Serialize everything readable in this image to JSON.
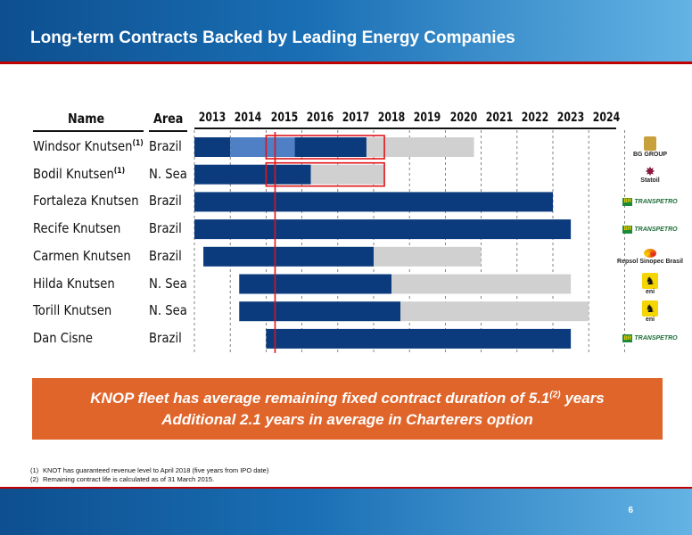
{
  "header": {
    "title": "Long-term Contracts Backed by Leading Energy Companies"
  },
  "table_headers": {
    "name": "Name",
    "area": "Area"
  },
  "callout": {
    "line1_a": "KNOP fleet has average remaining fixed contract duration of 5.1",
    "line1_sup": "(2)",
    "line1_b": " years",
    "line2": "Additional 2.1 years in average in Charterers option"
  },
  "footnotes": [
    {
      "num": "(1)",
      "text": "KNOT has guaranteed revenue level to April 2018 (five years from IPO date)"
    },
    {
      "num": "(2)",
      "text": "Remaining contract life is calculated as of 31 March 2015."
    }
  ],
  "page_number": "6",
  "colors": {
    "fixed": "#0b3b7c",
    "fixed_light": "#4f7fc4",
    "option": "#d0d0d0",
    "guarantee_box": "#e0141a",
    "current_date_line": "#e0141a",
    "callout": "#e0652b"
  },
  "chart_data": {
    "type": "gantt",
    "x_axis": {
      "years": [
        "2013",
        "2014",
        "2015",
        "2016",
        "2017",
        "2018",
        "2019",
        "2020",
        "2021",
        "2022",
        "2023",
        "2024"
      ],
      "range": [
        2013,
        2025
      ]
    },
    "current_date": 2015.25,
    "grid": "vertical dashed lines at year boundaries",
    "rows": [
      {
        "name": "Windsor Knutsen",
        "name_sup": "(1)",
        "area": "Brazil",
        "charterer": "BG GROUP",
        "charterer_icon": "bg-group-logo",
        "segments": [
          {
            "kind": "fixed",
            "start": 2013.0,
            "end": 2014.0
          },
          {
            "kind": "fixed_light",
            "start": 2014.0,
            "end": 2015.8
          },
          {
            "kind": "fixed",
            "start": 2015.8,
            "end": 2017.8
          },
          {
            "kind": "option",
            "start": 2017.8,
            "end": 2020.8
          }
        ],
        "guarantee": {
          "start": 2015.0,
          "end": 2018.3
        }
      },
      {
        "name": "Bodil Knutsen",
        "name_sup": "(1)",
        "area": "N. Sea",
        "charterer": "Statoil",
        "charterer_icon": "statoil-logo",
        "segments": [
          {
            "kind": "fixed",
            "start": 2013.0,
            "end": 2016.25
          },
          {
            "kind": "option",
            "start": 2016.25,
            "end": 2018.3
          }
        ],
        "guarantee": {
          "start": 2015.0,
          "end": 2018.3
        }
      },
      {
        "name": "Fortaleza Knutsen",
        "name_sup": "",
        "area": "Brazil",
        "charterer": "TRANSPETRO",
        "charterer_icon": "transpetro-logo",
        "segments": [
          {
            "kind": "fixed",
            "start": 2013.0,
            "end": 2023.0
          }
        ]
      },
      {
        "name": "Recife Knutsen",
        "name_sup": "",
        "area": "Brazil",
        "charterer": "TRANSPETRO",
        "charterer_icon": "transpetro-logo",
        "segments": [
          {
            "kind": "fixed",
            "start": 2013.0,
            "end": 2023.5
          }
        ]
      },
      {
        "name": "Carmen Knutsen",
        "name_sup": "",
        "area": "Brazil",
        "charterer": "Repsol Sinopec Brasil",
        "charterer_icon": "repsol-sinopec-logo",
        "segments": [
          {
            "kind": "fixed",
            "start": 2013.25,
            "end": 2018.0
          },
          {
            "kind": "option",
            "start": 2018.0,
            "end": 2021.0
          }
        ]
      },
      {
        "name": "Hilda Knutsen",
        "name_sup": "",
        "area": "N. Sea",
        "charterer": "eni",
        "charterer_icon": "eni-logo",
        "segments": [
          {
            "kind": "fixed",
            "start": 2014.25,
            "end": 2018.5
          },
          {
            "kind": "option",
            "start": 2018.5,
            "end": 2023.5
          }
        ]
      },
      {
        "name": "Torill Knutsen",
        "name_sup": "",
        "area": "N. Sea",
        "charterer": "eni",
        "charterer_icon": "eni-logo",
        "segments": [
          {
            "kind": "fixed",
            "start": 2014.25,
            "end": 2018.75
          },
          {
            "kind": "option",
            "start": 2018.75,
            "end": 2024.0
          }
        ]
      },
      {
        "name": "Dan Cisne",
        "name_sup": "",
        "area": "Brazil",
        "charterer": "TRANSPETRO",
        "charterer_icon": "transpetro-logo",
        "segments": [
          {
            "kind": "fixed",
            "start": 2015.0,
            "end": 2023.5
          }
        ]
      }
    ]
  }
}
